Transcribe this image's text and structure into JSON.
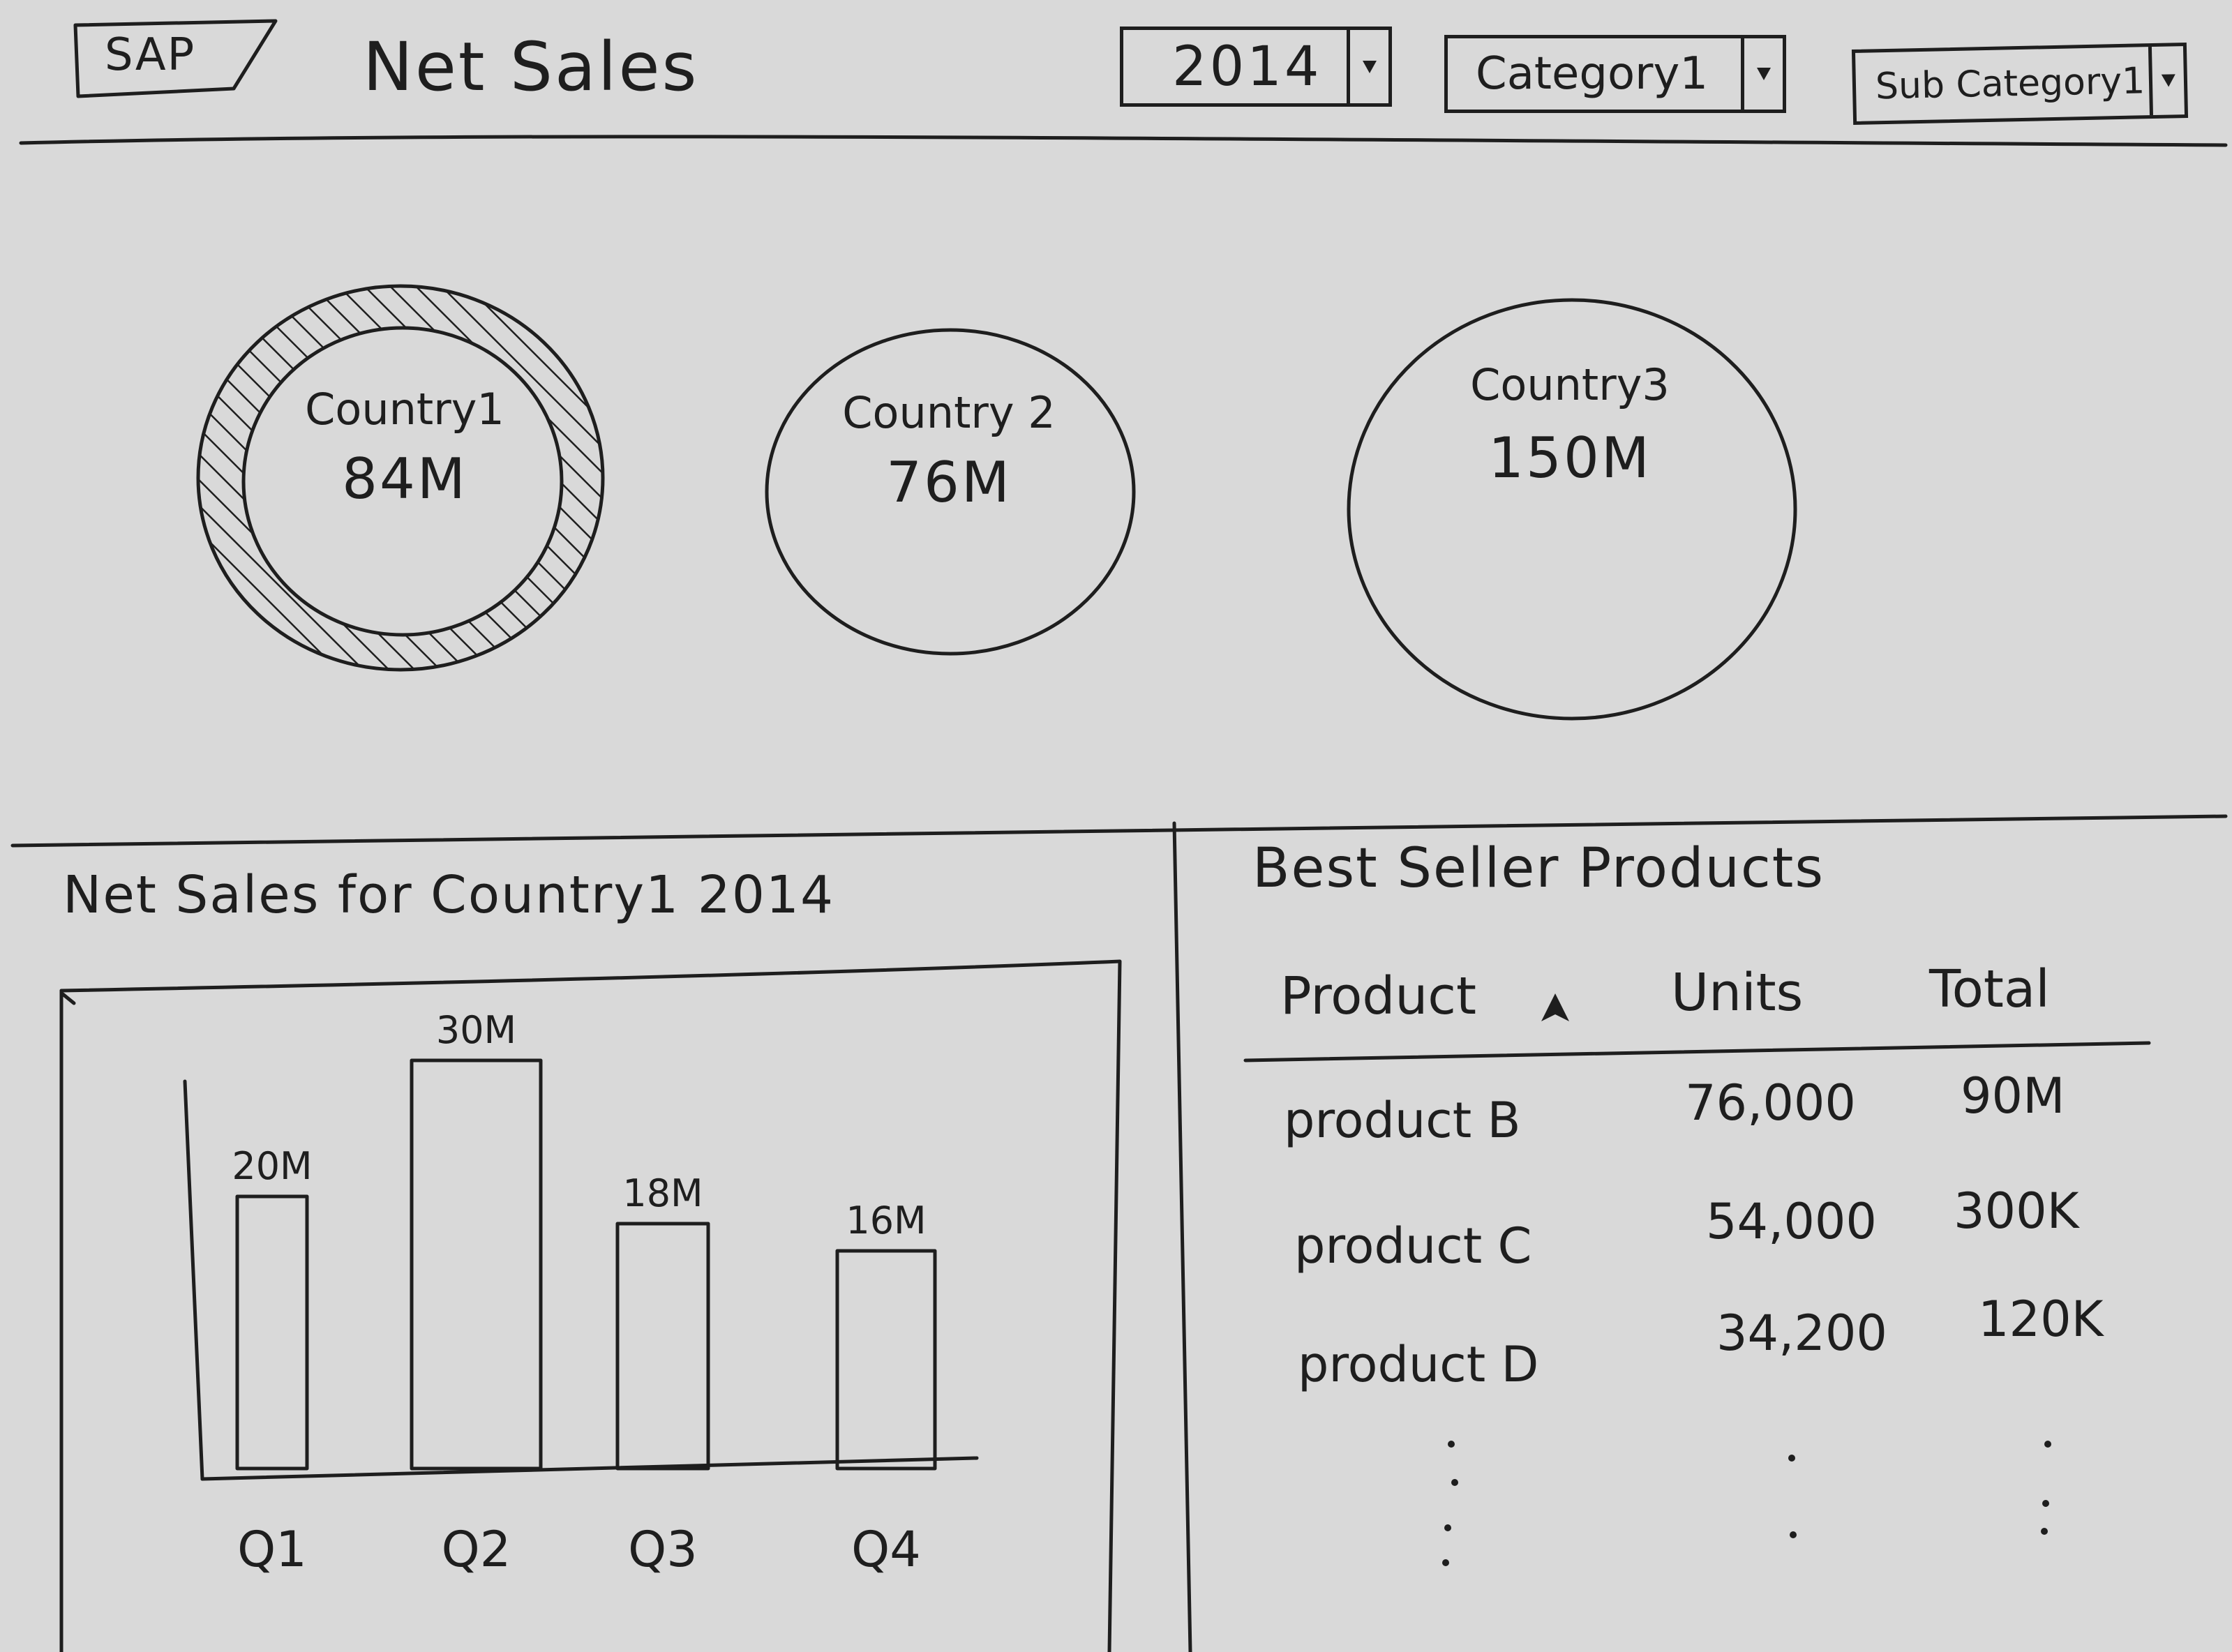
{
  "header": {
    "logo": "SAP",
    "title": "Net Sales",
    "filters": {
      "year": "2014",
      "category": "Category1",
      "subcategory": "Sub Category1"
    }
  },
  "countries": [
    {
      "name": "Country1",
      "value": "84M",
      "selected": true
    },
    {
      "name": "Country 2",
      "value": "76M",
      "selected": false
    },
    {
      "name": "Country3",
      "value": "150M",
      "selected": false
    }
  ],
  "sales_panel": {
    "title": "Net Sales for Country1 2014"
  },
  "chart_data": {
    "type": "bar",
    "title": "Net Sales for Country1 2014",
    "categories": [
      "Q1",
      "Q2",
      "Q3",
      "Q4"
    ],
    "values": [
      20,
      30,
      18,
      16
    ],
    "value_labels": [
      "20M",
      "30M",
      "18M",
      "16M"
    ],
    "xlabel": "",
    "ylabel": "",
    "grid": false
  },
  "bestseller_panel": {
    "title": "Best Seller Products",
    "columns": [
      "Product",
      "Units",
      "Total"
    ],
    "rows": [
      {
        "product": "product B",
        "units": "76,000",
        "total": "90M"
      },
      {
        "product": "product C",
        "units": "54,000",
        "total": "300K"
      },
      {
        "product": "product D",
        "units": "34,200",
        "total": "120K"
      }
    ],
    "sort_icon": "sort-arrow-icon"
  }
}
